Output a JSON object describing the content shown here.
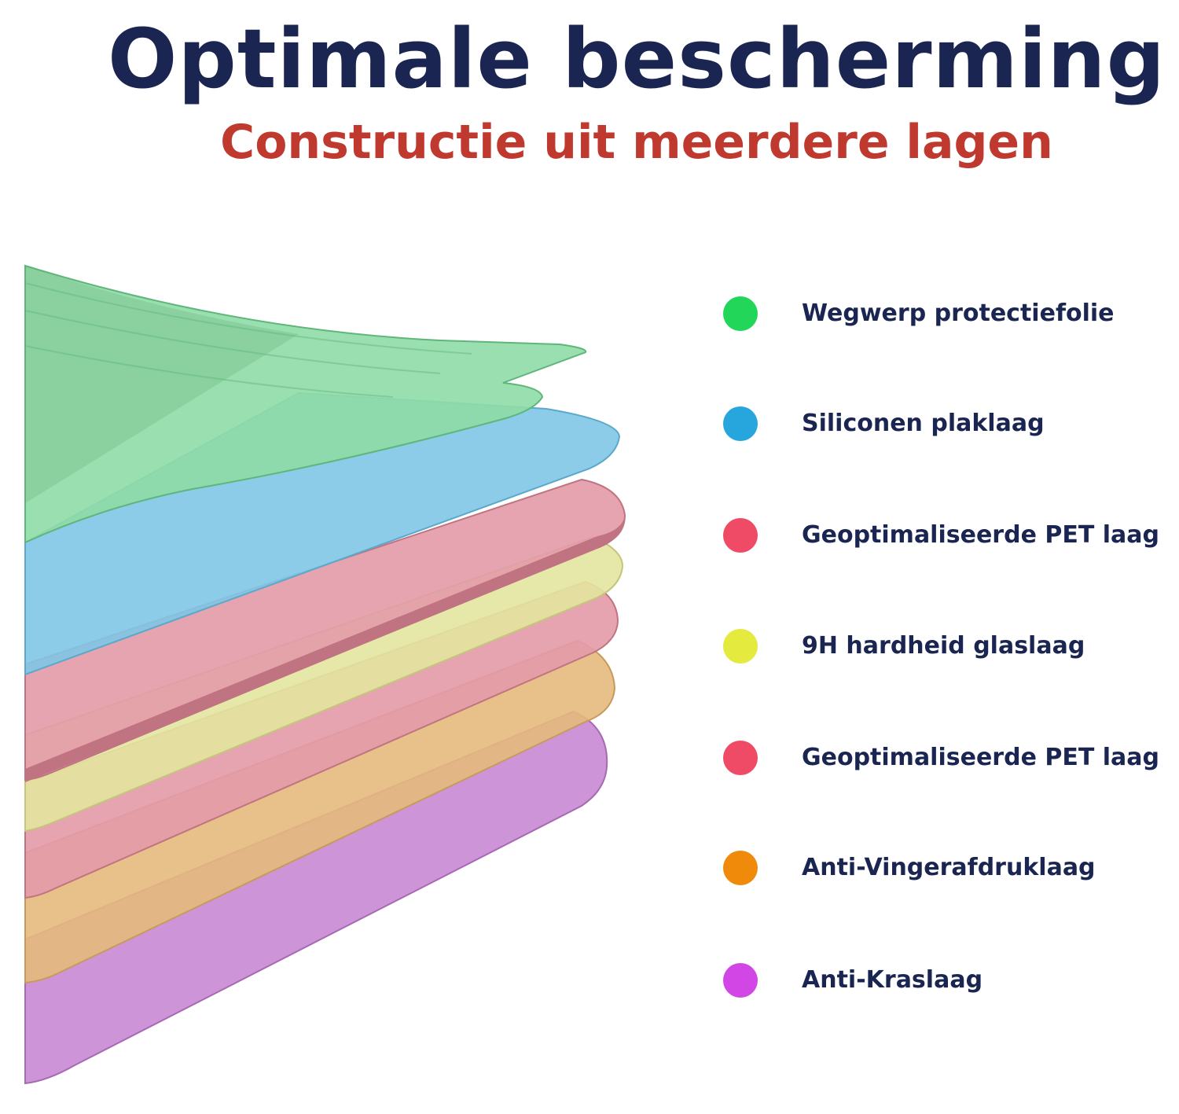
{
  "header": {
    "title": "Optimale bescherming",
    "subtitle": "Constructie uit meerdere lagen"
  },
  "colors": {
    "title": "#1a2651",
    "subtitle": "#c0392f"
  },
  "layers": [
    {
      "label": "Wegwerp protectiefolie",
      "dot_color": "#22d65a",
      "fill": "#8fdca6",
      "edge": "#5fb67a"
    },
    {
      "label": "Siliconen plaklaag",
      "dot_color": "#27a6dd",
      "fill": "#7fc7e6",
      "edge": "#5aa8cb"
    },
    {
      "label": "Geoptimaliseerde PET laag",
      "dot_color": "#ef4a66",
      "fill": "#e39aa8",
      "edge": "#c07482"
    },
    {
      "label": "9H hardheid glaslaag",
      "dot_color": "#e4ea3e",
      "fill": "#e3e5a0",
      "edge": "#c4c67a"
    },
    {
      "label": "Geoptimaliseerde PET laag",
      "dot_color": "#ef4a66",
      "fill": "#e39aa8",
      "edge": "#c07482"
    },
    {
      "label": "Anti-Vingerafdruklaag",
      "dot_color": "#ef8a0a",
      "fill": "#e6b97c",
      "edge": "#c79a5c"
    },
    {
      "label": "Anti-Kraslaag",
      "dot_color": "#d246e6",
      "fill": "#c88ad4",
      "edge": "#a868b4"
    }
  ]
}
